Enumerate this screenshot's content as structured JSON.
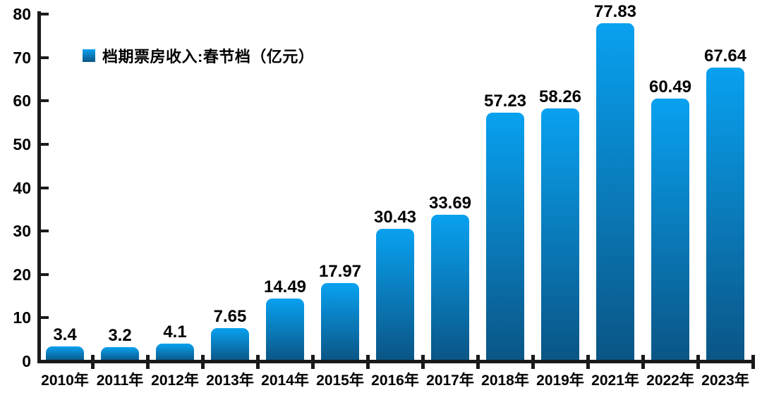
{
  "chart_data": {
    "type": "bar",
    "title": "",
    "legend": "档期票房收入:春节档（亿元）",
    "categories": [
      "2010年",
      "2011年",
      "2012年",
      "2013年",
      "2014年",
      "2015年",
      "2016年",
      "2017年",
      "2018年",
      "2019年",
      "2021年",
      "2022年",
      "2023年"
    ],
    "values": [
      3.4,
      3.2,
      4.1,
      7.65,
      14.49,
      17.97,
      30.43,
      33.69,
      57.23,
      58.26,
      77.83,
      60.49,
      67.64
    ],
    "xlabel": "",
    "ylabel": "",
    "ylim": [
      0,
      80
    ],
    "yticks": [
      0,
      10,
      20,
      30,
      40,
      50,
      60,
      70,
      80
    ],
    "grid": false,
    "legend_position": "top-left",
    "colors": {
      "bar_gradient_top": "#09a1f0",
      "bar_gradient_bottom": "#0a5585",
      "axis": "#1a1a1a",
      "label": "#000000"
    }
  }
}
